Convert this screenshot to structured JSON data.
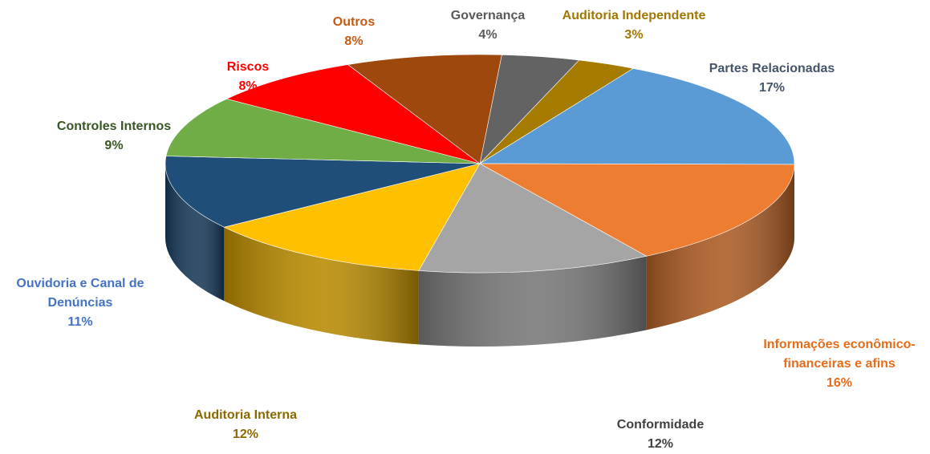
{
  "chart_data": {
    "type": "pie",
    "style": "3d-exploded-none",
    "slices": [
      {
        "label": "Governança",
        "label_lines": [
          "Governança"
        ],
        "value": 4,
        "value_label": "4%",
        "color": "#636363",
        "label_color": "#595959"
      },
      {
        "label": "Auditoria Independente",
        "label_lines": [
          "Auditoria Independente"
        ],
        "value": 3,
        "value_label": "3%",
        "color": "#a57c00",
        "label_color": "#a07700"
      },
      {
        "label": "Partes Relacionadas",
        "label_lines": [
          "Partes Relacionadas"
        ],
        "value": 17,
        "value_label": "17%",
        "color": "#5b9bd5",
        "label_color": "#44546a"
      },
      {
        "label": "Informações econômico-financeiras e afins",
        "label_lines": [
          "Informações econômico-",
          "financeiras e afins"
        ],
        "value": 16,
        "value_label": "16%",
        "color": "#ed7d31",
        "label_color": "#e56c1a"
      },
      {
        "label": "Conformidade",
        "label_lines": [
          "Conformidade"
        ],
        "value": 12,
        "value_label": "12%",
        "color": "#a5a5a5",
        "label_color": "#404040"
      },
      {
        "label": "Auditoria Interna",
        "label_lines": [
          "Auditoria Interna"
        ],
        "value": 12,
        "value_label": "12%",
        "color": "#ffc000",
        "label_color": "#8a6a00"
      },
      {
        "label": "Ouvidoria e Canal de Denúncias",
        "label_lines": [
          "Ouvidoria e Canal de",
          "Denúncias"
        ],
        "value": 11,
        "value_label": "11%",
        "color": "#1f4e79",
        "label_color": "#4472c4"
      },
      {
        "label": "Controles Internos",
        "label_lines": [
          "Controles Internos"
        ],
        "value": 9,
        "value_label": "9%",
        "color": "#70ad47",
        "label_color": "#375623"
      },
      {
        "label": "Riscos",
        "label_lines": [
          "Riscos"
        ],
        "value": 8,
        "value_label": "8%",
        "color": "#ff0000",
        "label_color": "#ff0000"
      },
      {
        "label": "Outros",
        "label_lines": [
          "Outros"
        ],
        "value": 8,
        "value_label": "8%",
        "color": "#9e480e",
        "label_color": "#c55a11"
      }
    ]
  }
}
